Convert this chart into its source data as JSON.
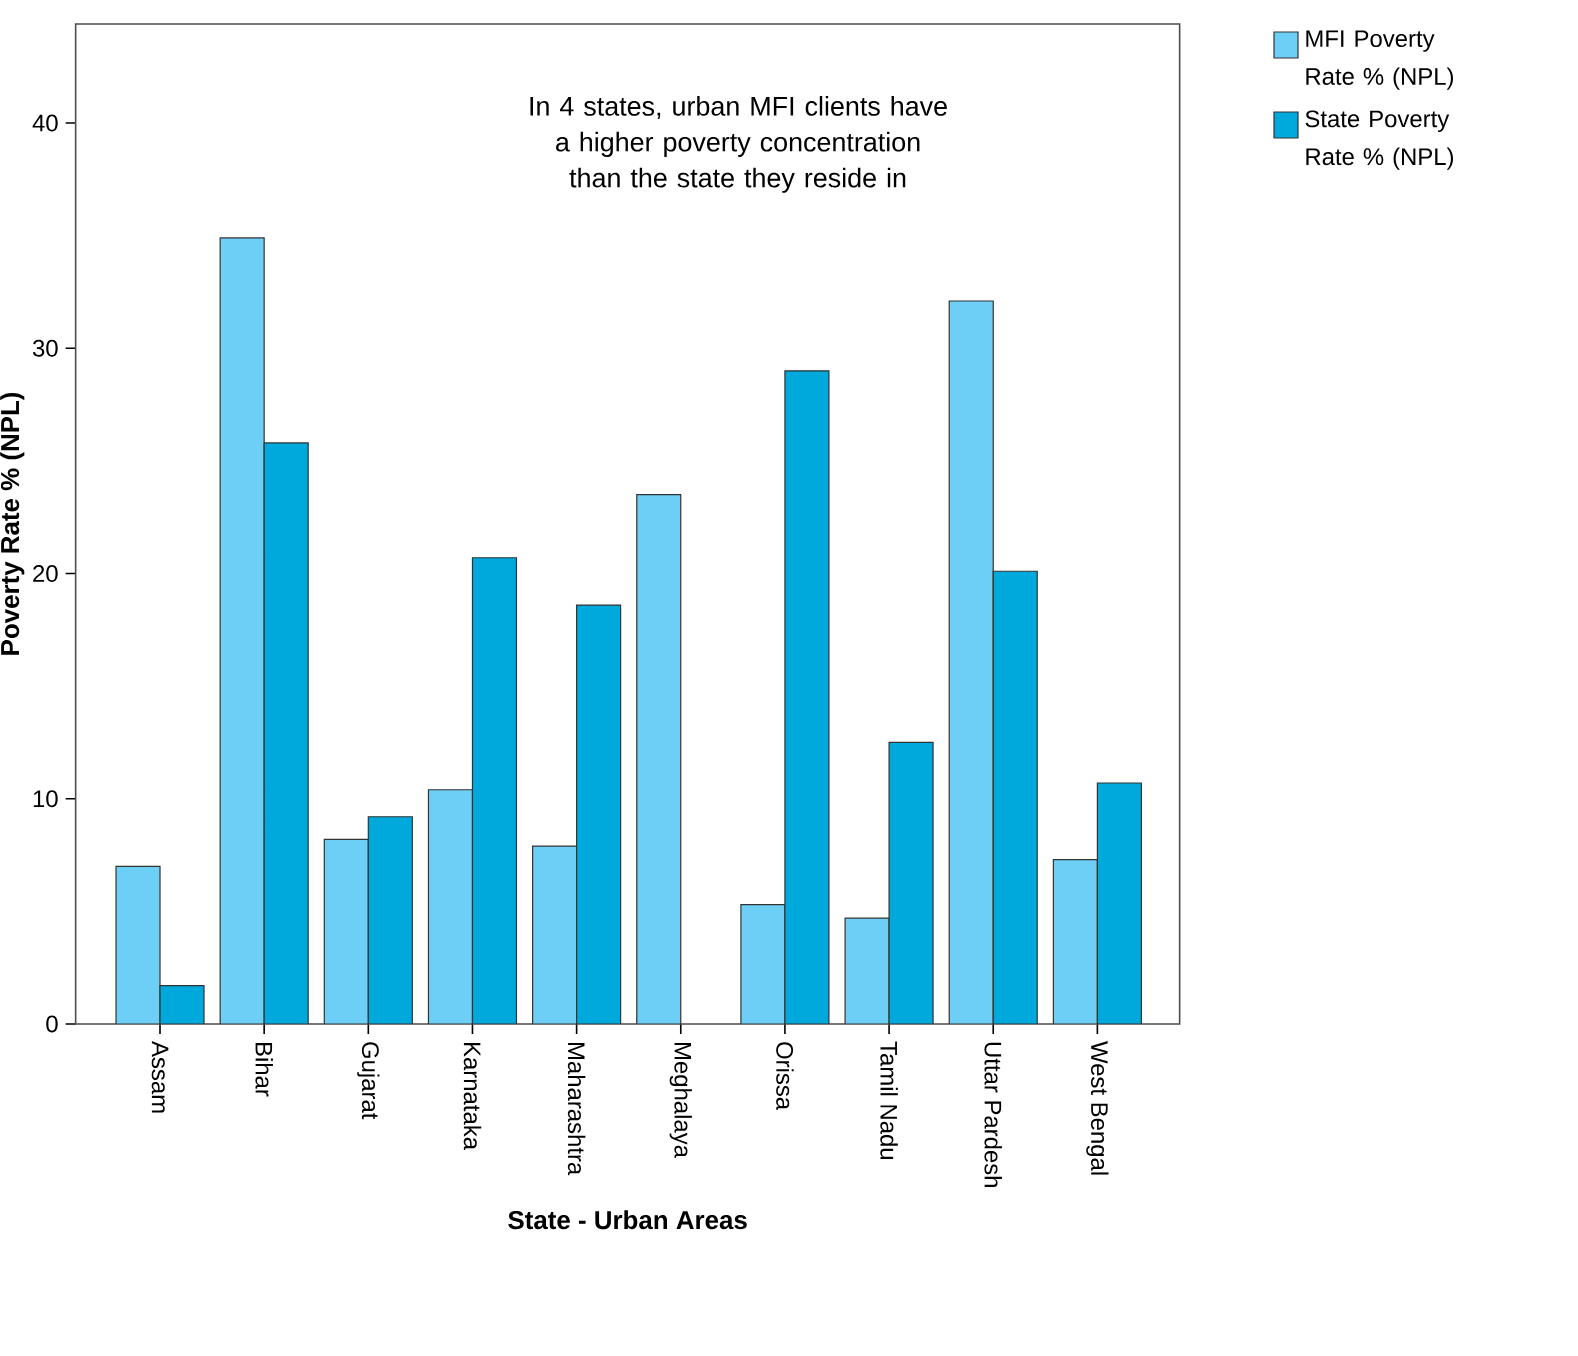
{
  "chart_data": {
    "type": "bar",
    "xlabel": "State - Urban Areas",
    "ylabel": "Poverty Rate % (NPL)",
    "categories": [
      "Assam",
      "Bihar",
      "Gujarat",
      "Karnataka",
      "Maharashtra",
      "Meghalaya",
      "Orissa",
      "Tamil Nadu",
      "Uttar Pardesh",
      "West Bengal"
    ],
    "series": [
      {
        "name": "MFI Poverty Rate % (NPL)",
        "color": "#6dcff6",
        "values": [
          7.0,
          34.9,
          8.2,
          10.4,
          7.9,
          23.5,
          5.3,
          4.7,
          32.1,
          7.3
        ]
      },
      {
        "name": "State Poverty Rate % (NPL)",
        "color": "#00a9dc",
        "values": [
          1.7,
          25.8,
          9.2,
          20.7,
          18.6,
          null,
          29.0,
          12.5,
          20.1,
          10.7
        ]
      }
    ],
    "ylim": [
      0,
      44.4
    ],
    "yticks": [
      0,
      10,
      20,
      30,
      40
    ],
    "legend": "top right",
    "annotations": [
      "In 4 states, urban MFI clients have a higher poverty concentration than the state they reside in"
    ]
  }
}
